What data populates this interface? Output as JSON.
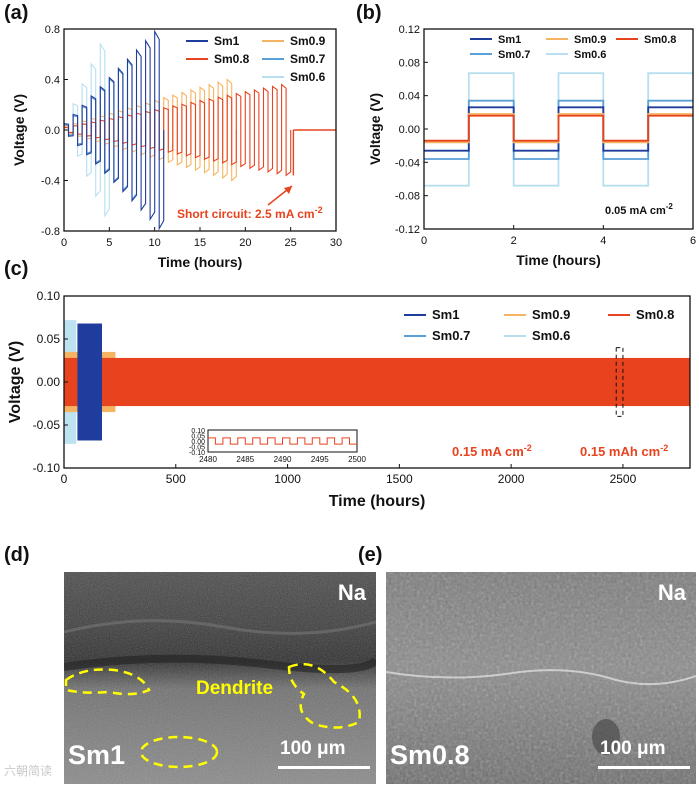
{
  "panels": {
    "a": {
      "label": "(a)"
    },
    "b": {
      "label": "(b)"
    },
    "c": {
      "label": "(c)"
    },
    "d": {
      "label": "(d)"
    },
    "e": {
      "label": "(e)"
    }
  },
  "colors": {
    "Sm1": "#1f3d9c",
    "Sm0.9": "#f5b461",
    "Sm0.8": "#e8431f",
    "Sm0.7": "#5a9fd6",
    "Sm0.6": "#b8dff0"
  },
  "chart_data": [
    {
      "id": "a",
      "type": "line",
      "xlabel": "Time (hours)",
      "ylabel": "Voltage (V)",
      "xlim": [
        0,
        30
      ],
      "ylim": [
        -0.8,
        0.8
      ],
      "xticks": [
        "0",
        "5",
        "10",
        "15",
        "20",
        "25",
        "30"
      ],
      "yticks": [
        "0.8",
        "0.4",
        "0.0",
        "-0.4",
        "-0.8"
      ],
      "legend": [
        "Sm1",
        "Sm0.9",
        "Sm0.8",
        "Sm0.7",
        "Sm0.6"
      ],
      "legend_position": "top-right",
      "annotation": "Short circuit: 2.5 mA cm",
      "annotation_sup": "-2",
      "series": [
        {
          "name": "Sm1",
          "cycle_hours": 1,
          "amp_start": 0.05,
          "amp_end": 0.78,
          "end_hours": 11
        },
        {
          "name": "Sm0.9",
          "cycle_hours": 1,
          "amp_start": 0.03,
          "amp_end": 0.4,
          "end_hours": 19
        },
        {
          "name": "Sm0.8",
          "cycle_hours": 1,
          "amp_start": 0.02,
          "amp_end": 0.36,
          "end_hours": 25.3,
          "after_short": 0.0
        },
        {
          "name": "Sm0.7",
          "cycle_hours": 1,
          "amp_start": 0.04,
          "amp_end": 0.55,
          "end_hours": 8
        },
        {
          "name": "Sm0.6",
          "cycle_hours": 1,
          "amp_start": 0.05,
          "amp_end": 0.68,
          "end_hours": 5
        }
      ]
    },
    {
      "id": "b",
      "type": "line",
      "xlabel": "Time (hours)",
      "ylabel": "Voltage (V)",
      "xlim": [
        0,
        6
      ],
      "ylim": [
        -0.12,
        0.12
      ],
      "xticks": [
        "0",
        "2",
        "4",
        "6"
      ],
      "yticks": [
        "0.12",
        "0.08",
        "0.04",
        "0.00",
        "-0.04",
        "-0.08",
        "-0.12"
      ],
      "legend": [
        "Sm1",
        "Sm0.9",
        "Sm0.8",
        "Sm0.7",
        "Sm0.6"
      ],
      "legend_position": "top",
      "annotation": "0.05 mA cm",
      "annotation_sup": "-2",
      "series": [
        {
          "name": "Sm0.6",
          "high": 0.067,
          "low": -0.068
        },
        {
          "name": "Sm0.7",
          "high": 0.034,
          "low": -0.036
        },
        {
          "name": "Sm1",
          "high": 0.026,
          "low": -0.026
        },
        {
          "name": "Sm0.9",
          "high": 0.018,
          "low": -0.016
        },
        {
          "name": "Sm0.8",
          "high": 0.016,
          "low": -0.014
        }
      ]
    },
    {
      "id": "c",
      "type": "line",
      "xlabel": "Time (hours)",
      "ylabel": "Voltage (V)",
      "xlim": [
        0,
        2800
      ],
      "ylim": [
        -0.1,
        0.1
      ],
      "xticks": [
        "0",
        "500",
        "1000",
        "1500",
        "2000",
        "2500"
      ],
      "yticks": [
        "0.10",
        "0.05",
        "0.00",
        "-0.05",
        "-0.10"
      ],
      "legend": [
        "Sm1",
        "Sm0.9",
        "Sm0.8",
        "Sm0.7",
        "Sm0.6"
      ],
      "legend_position": "top-right",
      "annotation_1": "0.15 mA cm",
      "annotation_1_sup": "-2",
      "annotation_2": "0.15 mAh cm",
      "annotation_2_sup": "-2",
      "series": [
        {
          "name": "Sm0.8",
          "end_hours": 2800,
          "amp": 0.028
        },
        {
          "name": "Sm0.6",
          "end_hours": 55,
          "amp": 0.072
        },
        {
          "name": "Sm0.7",
          "end_hours": 90,
          "amp": 0.03
        },
        {
          "name": "Sm1",
          "start_hours": 60,
          "end_hours": 170,
          "amp": 0.068
        },
        {
          "name": "Sm0.9",
          "end_hours": 230,
          "amp": 0.035
        }
      ],
      "inset": {
        "xlim": [
          2480,
          2500
        ],
        "ylim": [
          -0.1,
          0.1
        ],
        "xticks": [
          "2480",
          "2485",
          "2490",
          "2495",
          "2500"
        ],
        "yticks": [
          "0.10",
          "0.05",
          "0.00",
          "-0.05",
          "-0.10"
        ],
        "amp": 0.028
      }
    }
  ],
  "sem": {
    "d": {
      "na": "Na",
      "sample": "Sm1",
      "scale": "100 μm",
      "dendrite": "Dendrite"
    },
    "e": {
      "na": "Na",
      "sample": "Sm0.8",
      "scale": "100 μm"
    }
  },
  "watermark": "六朝简读"
}
